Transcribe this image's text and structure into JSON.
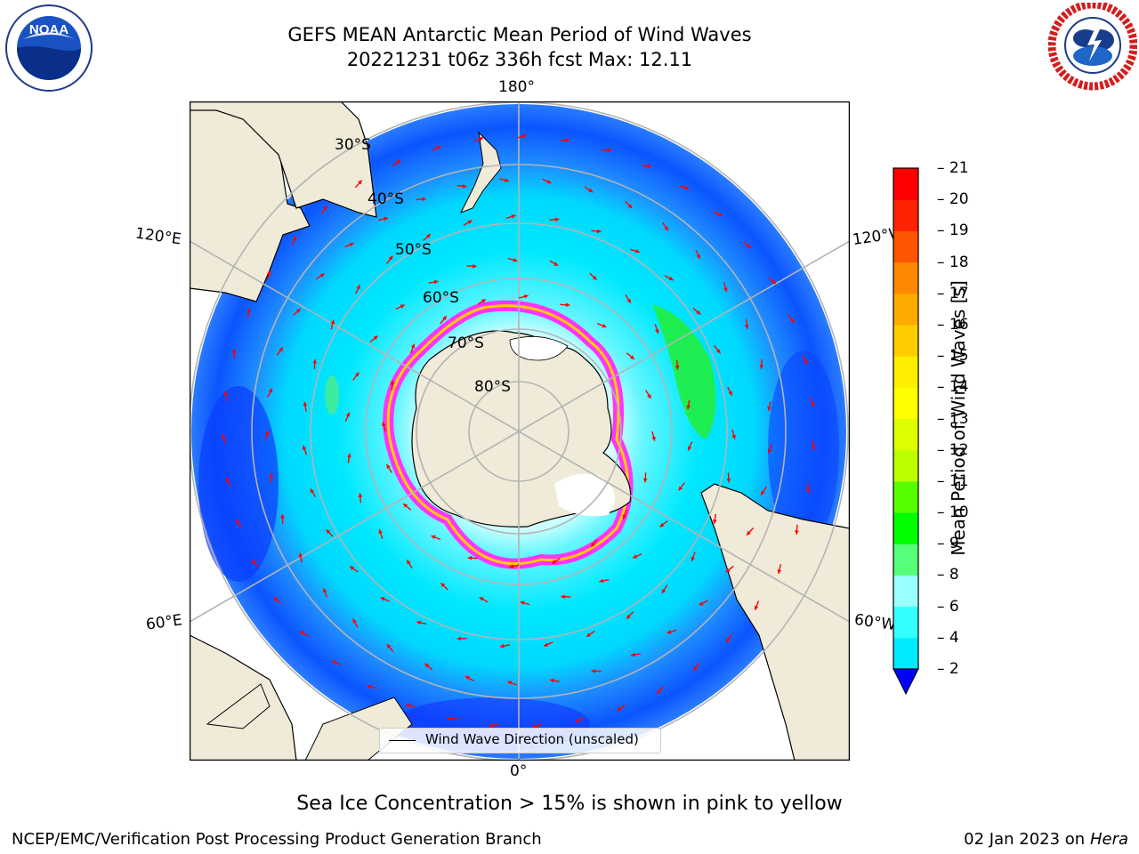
{
  "header": {
    "title_line1": "GEFS MEAN Antarctic Mean Period of Wind Waves",
    "title_line2": "20221231 t06z 336h fcst   Max: 12.11"
  },
  "logos": {
    "left": {
      "icon": "noaa-logo",
      "text": "NOAA",
      "ring_text": "NATIONAL OCEANIC AND ATMOSPHERIC ADMINISTRATION · U.S. DEPARTMENT OF COMMERCE"
    },
    "right": {
      "icon": "nws-logo",
      "ring_text": "NATIONAL WEATHER SERVICE"
    }
  },
  "map": {
    "projection": "south-polar-stereographic",
    "longitude_labels": {
      "top": "180°",
      "bottom": "0°",
      "upper_left": "120°E",
      "upper_right": "120°W",
      "lower_left": "60°E",
      "lower_right": "60°W"
    },
    "latitude_labels": [
      "30°S",
      "40°S",
      "50°S",
      "60°S",
      "70°S",
      "80°S"
    ],
    "colors": {
      "land": "#efebd8",
      "ocean_low": "#0050ff",
      "ocean_mid": "#00e5ff",
      "ice_pink": "#ff33ff",
      "ice_yellow": "#ffff00",
      "arrows": "#ff0000"
    },
    "legend_label": "Wind Wave Direction (unscaled)"
  },
  "colorbar": {
    "label": "Mean Period of Wind Waves [s]",
    "ticks": [
      "2",
      "4",
      "6",
      "8",
      "9",
      "10",
      "11",
      "12",
      "13",
      "14",
      "15",
      "16",
      "17",
      "18",
      "19",
      "20",
      "21"
    ],
    "colors": [
      "#0064ff",
      "#00ebff",
      "#33ffff",
      "#99ffff",
      "#55ff77",
      "#00ff00",
      "#55ff00",
      "#bbff00",
      "#ddff00",
      "#ffff00",
      "#ffee00",
      "#ffcc00",
      "#ffaa00",
      "#ff8800",
      "#ff5500",
      "#ff2200",
      "#ff0000"
    ]
  },
  "caption": "Sea Ice Concentration > 15% is shown in pink to yellow",
  "footer": {
    "left": "NCEP/EMC/Verification Post Processing Product Generation Branch",
    "date": "02 Jan 2023 on",
    "machine": "Hera"
  }
}
